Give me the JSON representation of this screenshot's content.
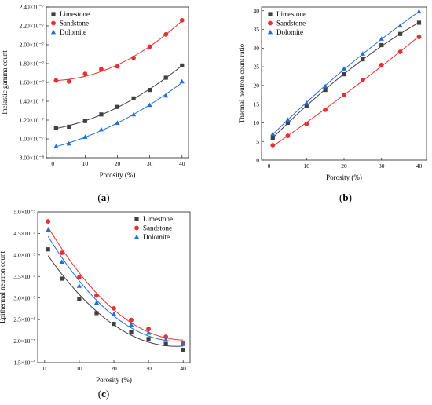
{
  "colors": {
    "limestone": "#404040",
    "sandstone": "#e8312f",
    "dolomite": "#1f6fe0",
    "frame": "#222222"
  },
  "chart_data": [
    {
      "panel_label": "(a)",
      "type": "scatter",
      "xlabel": "Porosity (%)",
      "ylabel": "Inelastic gamma count",
      "xlim": [
        -2,
        42
      ],
      "ylim": [
        8e-08,
        2.4e-07
      ],
      "x_ticks": [
        0,
        10,
        20,
        30,
        40
      ],
      "y_ticks": [
        8e-08,
        1e-07,
        1.2e-07,
        1.4e-07,
        1.6e-07,
        1.8e-07,
        2e-07,
        2.2e-07,
        2.4e-07
      ],
      "y_tick_labels": [
        "8.00×10⁻⁸",
        "1.00×10⁻⁷",
        "1.20×10⁻⁷",
        "1.40×10⁻⁷",
        "1.60×10⁻⁷",
        "1.80×10⁻⁷",
        "2.00×10⁻⁷",
        "2.20×10⁻⁷",
        "2.40×10⁻⁷"
      ],
      "legend_position": "top-left",
      "grid": false,
      "series": [
        {
          "name": "Limestone",
          "marker": "square",
          "x": [
            1,
            5,
            10,
            15,
            20,
            25,
            30,
            35,
            40
          ],
          "y": [
            1.12e-07,
            1.13e-07,
            1.19e-07,
            1.26e-07,
            1.34e-07,
            1.43e-07,
            1.52e-07,
            1.65e-07,
            1.78e-07
          ]
        },
        {
          "name": "Sandstone",
          "marker": "circle",
          "x": [
            1,
            5,
            10,
            15,
            20,
            25,
            30,
            35,
            40
          ],
          "y": [
            1.62e-07,
            1.61e-07,
            1.69e-07,
            1.74e-07,
            1.77e-07,
            1.86e-07,
            1.98e-07,
            2.11e-07,
            2.26e-07
          ]
        },
        {
          "name": "Dolomite",
          "marker": "triangle",
          "x": [
            1,
            5,
            10,
            15,
            20,
            25,
            30,
            35,
            40
          ],
          "y": [
            9.2e-08,
            9.5e-08,
            1.02e-07,
            1.1e-07,
            1.17e-07,
            1.26e-07,
            1.36e-07,
            1.46e-07,
            1.61e-07
          ]
        }
      ]
    },
    {
      "panel_label": "(b)",
      "type": "scatter",
      "xlabel": "Porosity (%)",
      "ylabel": "Thermal neutron count ratio",
      "xlim": [
        -2,
        42
      ],
      "ylim": [
        0,
        41
      ],
      "x_ticks": [
        0,
        10,
        20,
        30,
        40
      ],
      "y_ticks": [
        0,
        5,
        10,
        15,
        20,
        25,
        30,
        35,
        40
      ],
      "y_tick_labels": [
        "0",
        "5",
        "10",
        "15",
        "20",
        "25",
        "30",
        "35",
        "40"
      ],
      "legend_position": "top-left",
      "grid": false,
      "series": [
        {
          "name": "Limestone",
          "marker": "square",
          "x": [
            1,
            5,
            10,
            15,
            20,
            25,
            30,
            35,
            40
          ],
          "y": [
            6.0,
            10.0,
            14.5,
            18.8,
            23.0,
            27.0,
            30.8,
            33.8,
            36.8
          ]
        },
        {
          "name": "Sandstone",
          "marker": "circle",
          "x": [
            1,
            5,
            10,
            15,
            20,
            25,
            30,
            35,
            40
          ],
          "y": [
            4.0,
            6.5,
            9.7,
            13.5,
            17.5,
            21.5,
            25.5,
            29.0,
            33.0
          ]
        },
        {
          "name": "Dolomite",
          "marker": "triangle",
          "x": [
            1,
            5,
            10,
            15,
            20,
            25,
            30,
            35,
            40
          ],
          "y": [
            7.0,
            10.8,
            15.3,
            19.8,
            24.5,
            28.5,
            32.5,
            36.0,
            39.8
          ]
        }
      ]
    },
    {
      "panel_label": "(c)",
      "type": "scatter",
      "xlabel": "Porosity (%)",
      "ylabel": "Epithermal neutron count",
      "xlim": [
        -2,
        42
      ],
      "ylim": [
        1.5e-05,
        5e-05
      ],
      "x_ticks": [
        0,
        10,
        20,
        30,
        40
      ],
      "y_ticks": [
        1.5e-05,
        2e-05,
        2.5e-05,
        3e-05,
        3.5e-05,
        4e-05,
        4.5e-05,
        5e-05
      ],
      "y_tick_labels": [
        "1.5×10⁻⁵",
        "2.0×10⁻⁵",
        "2.5×10⁻⁵",
        "3.0×10⁻⁵",
        "3.5×10⁻⁵",
        "4.0×10⁻⁵",
        "4.5×10⁻⁵",
        "5.0×10⁻⁵"
      ],
      "legend_position": "top-right",
      "grid": false,
      "series": [
        {
          "name": "Limestone",
          "marker": "square",
          "x": [
            1,
            5,
            10,
            15,
            20,
            25,
            30,
            35,
            40
          ],
          "y": [
            4.13e-05,
            3.45e-05,
            2.97e-05,
            2.65e-05,
            2.4e-05,
            2.2e-05,
            2.05e-05,
            1.93e-05,
            1.8e-05
          ]
        },
        {
          "name": "Sandstone",
          "marker": "circle",
          "x": [
            1,
            5,
            10,
            15,
            20,
            25,
            30,
            35,
            40
          ],
          "y": [
            4.78e-05,
            4.05e-05,
            3.48e-05,
            3.06e-05,
            2.76e-05,
            2.49e-05,
            2.28e-05,
            2.1e-05,
            1.95e-05
          ]
        },
        {
          "name": "Dolomite",
          "marker": "triangle",
          "x": [
            1,
            5,
            10,
            15,
            20,
            25,
            30,
            35,
            40
          ],
          "y": [
            4.58e-05,
            3.84e-05,
            3.28e-05,
            2.89e-05,
            2.63e-05,
            2.38e-05,
            2.19e-05,
            2.03e-05,
            1.93e-05
          ]
        }
      ]
    }
  ]
}
